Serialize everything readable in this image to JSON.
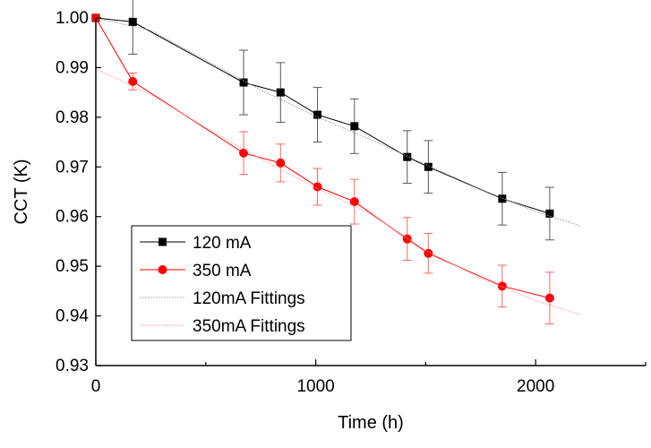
{
  "chart_data": {
    "type": "line",
    "title": "",
    "xlabel": "Time (h)",
    "ylabel": "CCT (K)",
    "xlim": [
      0,
      2500
    ],
    "ylim": [
      0.93,
      1.0
    ],
    "xticks": [
      0,
      1000,
      2000
    ],
    "xticks_minor": [
      500,
      1500,
      2500
    ],
    "yticks": [
      0.93,
      0.94,
      0.95,
      0.96,
      0.97,
      0.98,
      0.99,
      1.0
    ],
    "ytick_labels": [
      "0.93",
      "0.94",
      "0.95",
      "0.96",
      "0.97",
      "0.98",
      "0.99",
      "1.00"
    ],
    "xtick_labels": [
      "0",
      "1000",
      "2000"
    ],
    "grid": false,
    "legend_position": "lower-left",
    "series": [
      {
        "name": "120 mA",
        "color": "#000000",
        "marker": "square",
        "x": [
          0,
          168,
          672,
          840,
          1008,
          1176,
          1416,
          1512,
          1848,
          2064
        ],
        "y": [
          1.0,
          0.9992,
          0.987,
          0.985,
          0.9805,
          0.9782,
          0.972,
          0.97,
          0.9636,
          0.9606
        ],
        "err": [
          0,
          0.0065,
          0.0065,
          0.006,
          0.0055,
          0.0055,
          0.0053,
          0.0053,
          0.0053,
          0.0053
        ]
      },
      {
        "name": "350 mA",
        "color": "#ff0000",
        "marker": "circle",
        "x": [
          0,
          168,
          672,
          840,
          1008,
          1176,
          1416,
          1512,
          1848,
          2064
        ],
        "y": [
          1.0,
          0.9872,
          0.9728,
          0.9708,
          0.966,
          0.963,
          0.9555,
          0.9526,
          0.946,
          0.9436
        ],
        "err": [
          0,
          0.0017,
          0.0043,
          0.0038,
          0.0037,
          0.0045,
          0.0043,
          0.004,
          0.0042,
          0.0052
        ]
      },
      {
        "name": "120mA Fittings",
        "color": "#999999",
        "style": "dotted",
        "x": [
          0,
          250,
          500,
          750,
          1000,
          1250,
          1500,
          1750,
          2000,
          2200
        ],
        "y": [
          1.0,
          0.9975,
          0.9915,
          0.9855,
          0.9802,
          0.9755,
          0.9705,
          0.9655,
          0.961,
          0.9582
        ]
      },
      {
        "name": "350mA Fittings",
        "color": "#ff9999",
        "style": "dotted",
        "x": [
          0,
          250,
          500,
          750,
          1000,
          1250,
          1500,
          1750,
          2000,
          2200
        ],
        "y": [
          0.9897,
          0.9846,
          0.9779,
          0.9716,
          0.9658,
          0.9605,
          0.9532,
          0.9476,
          0.9431,
          0.9403
        ]
      }
    ]
  }
}
